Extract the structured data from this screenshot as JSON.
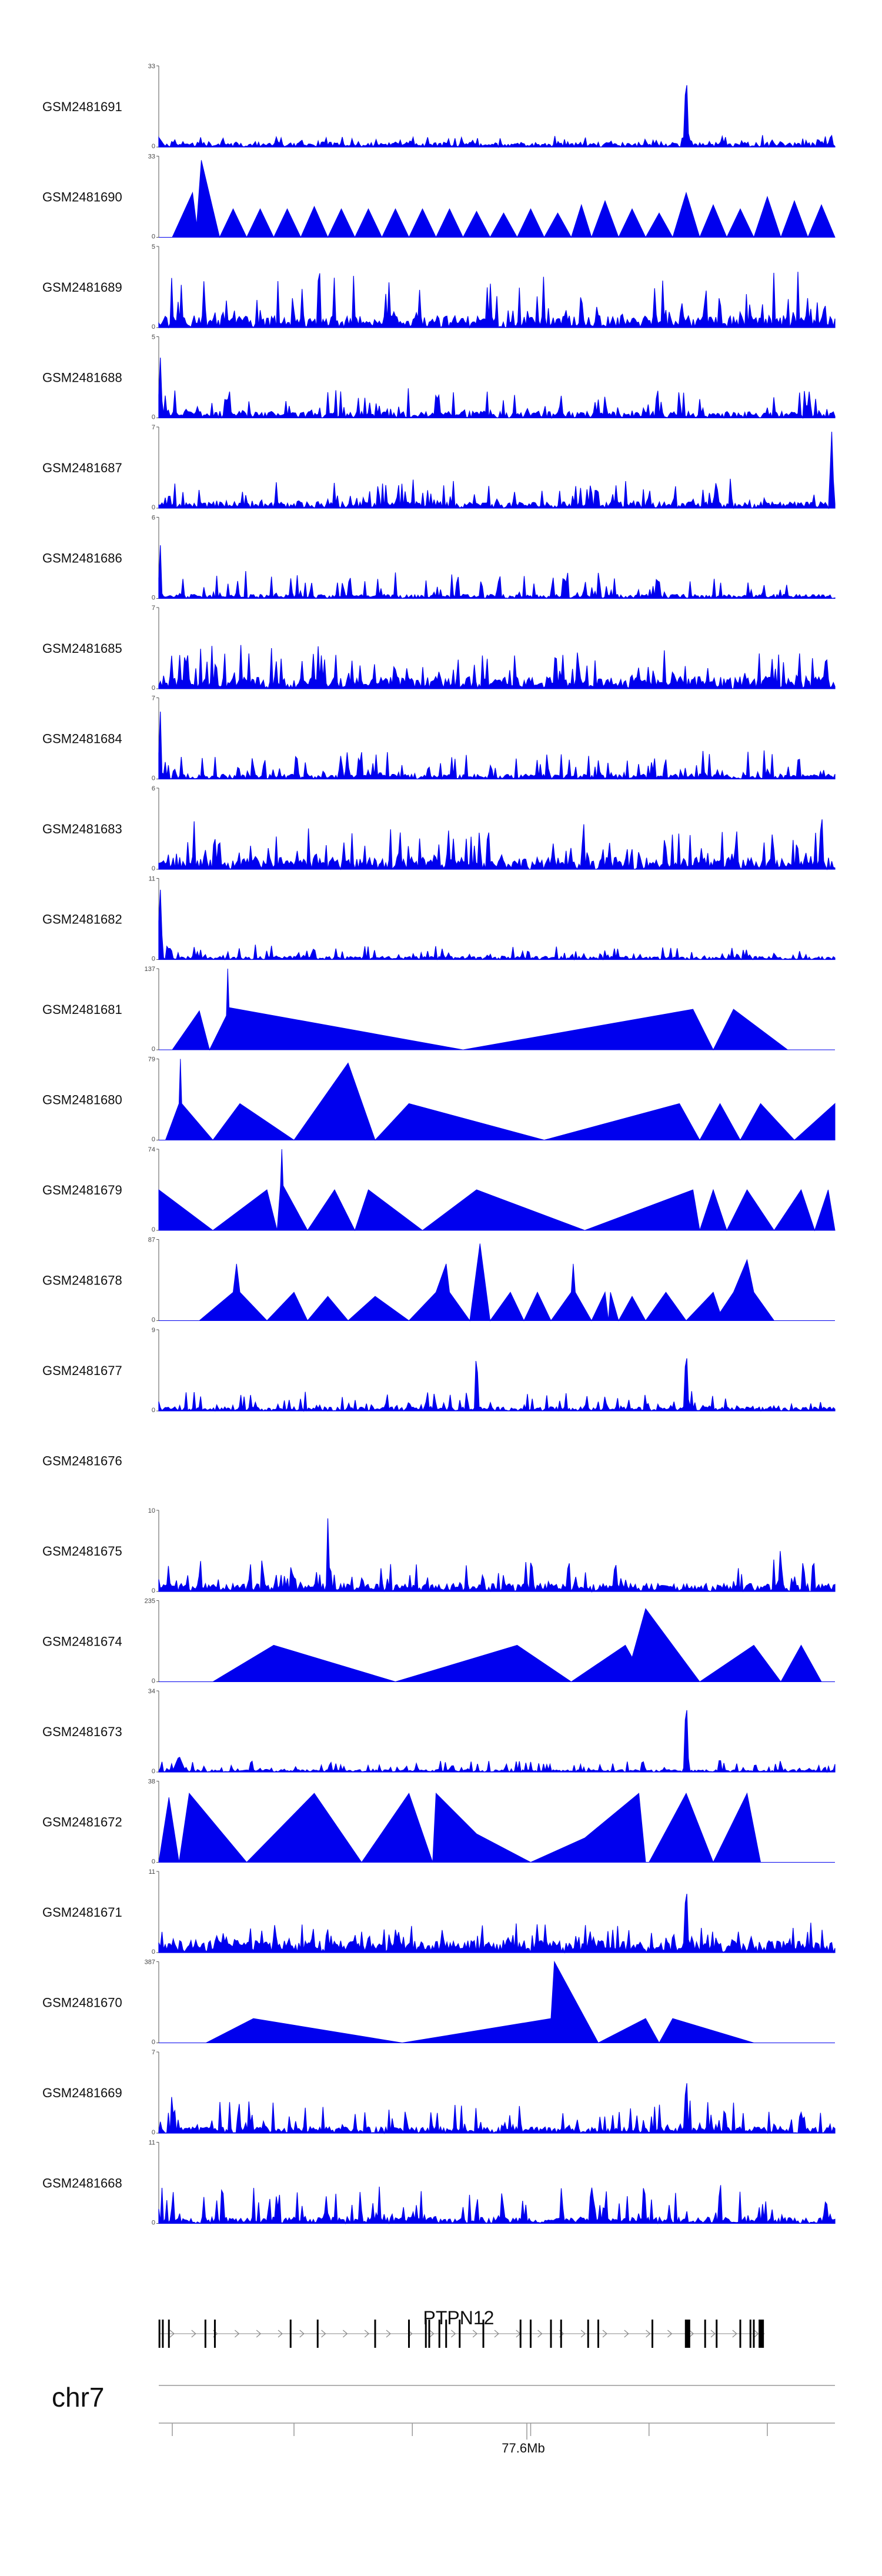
{
  "chart_data": {
    "type": "area",
    "title": "",
    "region": {
      "chromosome": "chr7",
      "gene": "PTPN12",
      "axis_tick_label": "77.6Mb",
      "x_domain": [
        0,
        100
      ]
    },
    "color": "#0000ee",
    "tracks": [
      {
        "name": "GSM2481691",
        "ymax": 33,
        "style": "noise",
        "seed": 11,
        "base": 0.06,
        "var": 0.1,
        "peaks": [
          [
            78,
            1.0,
            0.4
          ],
          [
            0,
            0.12,
            1
          ]
        ]
      },
      {
        "name": "GSM2481690",
        "ymax": 33,
        "style": "triangles",
        "points": [
          [
            2,
            0
          ],
          [
            5,
            0.55
          ],
          [
            5.6,
            0.15
          ],
          [
            6.3,
            0.95
          ],
          [
            9,
            0
          ],
          [
            11,
            0.35
          ],
          [
            13,
            0
          ],
          [
            15,
            0.35
          ],
          [
            17,
            0
          ],
          [
            19,
            0.35
          ],
          [
            21,
            0
          ],
          [
            23,
            0.38
          ],
          [
            25,
            0
          ],
          [
            27,
            0.35
          ],
          [
            29,
            0
          ],
          [
            31,
            0.35
          ],
          [
            33,
            0
          ],
          [
            35,
            0.35
          ],
          [
            37,
            0
          ],
          [
            39,
            0.35
          ],
          [
            41,
            0
          ],
          [
            43,
            0.35
          ],
          [
            45,
            0
          ],
          [
            47,
            0.32
          ],
          [
            49,
            0
          ],
          [
            51,
            0.3
          ],
          [
            53,
            0
          ],
          [
            55,
            0.35
          ],
          [
            57,
            0
          ],
          [
            59,
            0.3
          ],
          [
            61,
            0
          ],
          [
            62.5,
            0.4
          ],
          [
            64,
            0
          ],
          [
            66,
            0.45
          ],
          [
            68,
            0
          ],
          [
            70,
            0.35
          ],
          [
            72,
            0
          ],
          [
            74,
            0.3
          ],
          [
            76,
            0
          ],
          [
            78,
            0.55
          ],
          [
            80,
            0
          ],
          [
            82,
            0.4
          ],
          [
            84,
            0
          ],
          [
            86,
            0.35
          ],
          [
            88,
            0
          ],
          [
            90,
            0.5
          ],
          [
            92,
            0
          ],
          [
            94,
            0.45
          ],
          [
            96,
            0
          ],
          [
            98,
            0.4
          ],
          [
            100,
            0
          ]
        ]
      },
      {
        "name": "GSM2481689",
        "ymax": 5,
        "style": "noise",
        "seed": 23,
        "base": 0.15,
        "var": 0.55,
        "peaks": []
      },
      {
        "name": "GSM2481688",
        "ymax": 5,
        "style": "noise",
        "seed": 37,
        "base": 0.08,
        "var": 0.3,
        "peaks": [
          [
            0.2,
            0.85,
            0.3
          ]
        ]
      },
      {
        "name": "GSM2481687",
        "ymax": 7,
        "style": "noise",
        "seed": 41,
        "base": 0.08,
        "var": 0.3,
        "peaks": [
          [
            99.5,
            1.0,
            0.4
          ]
        ]
      },
      {
        "name": "GSM2481686",
        "ymax": 6,
        "style": "noise",
        "seed": 53,
        "base": 0.05,
        "var": 0.3,
        "peaks": [
          [
            0.2,
            0.75,
            0.3
          ]
        ]
      },
      {
        "name": "GSM2481685",
        "ymax": 7,
        "style": "noise",
        "seed": 67,
        "base": 0.15,
        "var": 0.45,
        "peaks": [
          [
            62,
            0.85,
            0.2
          ]
        ]
      },
      {
        "name": "GSM2481684",
        "ymax": 7,
        "style": "noise",
        "seed": 79,
        "base": 0.06,
        "var": 0.3,
        "peaks": [
          [
            0.2,
            0.95,
            0.3
          ]
        ]
      },
      {
        "name": "GSM2481683",
        "ymax": 6,
        "style": "noise",
        "seed": 83,
        "base": 0.15,
        "var": 0.45,
        "peaks": [
          [
            98,
            0.9,
            0.3
          ]
        ]
      },
      {
        "name": "GSM2481682",
        "ymax": 11,
        "style": "noise",
        "seed": 97,
        "base": 0.04,
        "var": 0.15,
        "peaks": [
          [
            0.2,
            0.95,
            0.4
          ]
        ]
      },
      {
        "name": "GSM2481681",
        "ymax": 137,
        "style": "triangles",
        "points": [
          [
            2,
            0
          ],
          [
            6,
            0.48
          ],
          [
            7.5,
            0
          ],
          [
            10,
            0.42
          ],
          [
            10.2,
            1.0
          ],
          [
            10.4,
            0.52
          ],
          [
            45,
            0
          ],
          [
            79,
            0.5
          ],
          [
            82,
            0
          ],
          [
            85,
            0.5
          ],
          [
            93,
            0
          ]
        ]
      },
      {
        "name": "GSM2481680",
        "ymax": 79,
        "style": "triangles",
        "points": [
          [
            1,
            0
          ],
          [
            3,
            0.45
          ],
          [
            3.2,
            1.0
          ],
          [
            3.4,
            0.45
          ],
          [
            8,
            0
          ],
          [
            12,
            0.45
          ],
          [
            20,
            0
          ],
          [
            28,
            0.95
          ],
          [
            32,
            0
          ],
          [
            37,
            0.45
          ],
          [
            57,
            0
          ],
          [
            77,
            0.45
          ],
          [
            80,
            0
          ],
          [
            83,
            0.45
          ],
          [
            86,
            0
          ],
          [
            89,
            0.45
          ],
          [
            94,
            0
          ],
          [
            100,
            0.45
          ],
          [
            100,
            0
          ]
        ]
      },
      {
        "name": "GSM2481679",
        "ymax": 74,
        "style": "triangles",
        "points": [
          [
            0,
            0.5
          ],
          [
            8,
            0
          ],
          [
            16,
            0.5
          ],
          [
            17.5,
            0
          ],
          [
            18,
            0.55
          ],
          [
            18.2,
            1.0
          ],
          [
            18.4,
            0.55
          ],
          [
            22,
            0
          ],
          [
            26,
            0.5
          ],
          [
            29,
            0
          ],
          [
            31,
            0.5
          ],
          [
            39,
            0
          ],
          [
            47,
            0.5
          ],
          [
            63,
            0
          ],
          [
            79,
            0.5
          ],
          [
            80,
            0
          ],
          [
            82,
            0.5
          ],
          [
            84,
            0
          ],
          [
            87,
            0.5
          ],
          [
            91,
            0
          ],
          [
            95,
            0.5
          ],
          [
            97,
            0
          ],
          [
            99,
            0.5
          ],
          [
            100,
            0
          ]
        ]
      },
      {
        "name": "GSM2481678",
        "ymax": 87,
        "style": "triangles",
        "points": [
          [
            6,
            0
          ],
          [
            11,
            0.35
          ],
          [
            11.5,
            0.7
          ],
          [
            12,
            0.35
          ],
          [
            16,
            0
          ],
          [
            20,
            0.35
          ],
          [
            22,
            0
          ],
          [
            25,
            0.3
          ],
          [
            28,
            0
          ],
          [
            32,
            0.3
          ],
          [
            37,
            0
          ],
          [
            41,
            0.35
          ],
          [
            42.5,
            0.7
          ],
          [
            43,
            0.35
          ],
          [
            46,
            0
          ],
          [
            47.5,
            0.95
          ],
          [
            49,
            0
          ],
          [
            52,
            0.35
          ],
          [
            54,
            0
          ],
          [
            56,
            0.35
          ],
          [
            58,
            0
          ],
          [
            61,
            0.35
          ],
          [
            61.3,
            0.7
          ],
          [
            61.6,
            0.35
          ],
          [
            64,
            0
          ],
          [
            66,
            0.35
          ],
          [
            66.5,
            0
          ],
          [
            66.8,
            0.35
          ],
          [
            68,
            0
          ],
          [
            70,
            0.3
          ],
          [
            72,
            0
          ],
          [
            75,
            0.35
          ],
          [
            78,
            0
          ],
          [
            82,
            0.35
          ],
          [
            83,
            0.1
          ],
          [
            85,
            0.35
          ],
          [
            87,
            0.75
          ],
          [
            88,
            0.35
          ],
          [
            91,
            0
          ],
          [
            96,
            0
          ]
        ]
      },
      {
        "name": "GSM2481677",
        "ymax": 9,
        "style": "noise",
        "seed": 101,
        "base": 0.05,
        "var": 0.2,
        "peaks": [
          [
            47,
            0.9,
            0.3
          ],
          [
            78,
            0.85,
            0.4
          ]
        ]
      },
      {
        "name": "GSM2481676",
        "ymax": 0,
        "style": "empty"
      },
      {
        "name": "GSM2481675",
        "ymax": 10,
        "style": "noise",
        "seed": 113,
        "base": 0.1,
        "var": 0.35,
        "peaks": [
          [
            25,
            0.9,
            0.2
          ],
          [
            92,
            0.95,
            0.2
          ]
        ]
      },
      {
        "name": "GSM2481674",
        "ymax": 235,
        "style": "triangles",
        "points": [
          [
            8,
            0
          ],
          [
            17,
            0.45
          ],
          [
            35,
            0
          ],
          [
            53,
            0.45
          ],
          [
            61,
            0
          ],
          [
            69,
            0.45
          ],
          [
            70,
            0.3
          ],
          [
            72,
            0.9
          ],
          [
            80,
            0
          ],
          [
            88,
            0.45
          ],
          [
            92,
            0
          ],
          [
            95,
            0.45
          ],
          [
            98,
            0
          ]
        ]
      },
      {
        "name": "GSM2481673",
        "ymax": 34,
        "style": "noise",
        "seed": 127,
        "base": 0.03,
        "var": 0.12,
        "peaks": [
          [
            78,
            1.0,
            0.4
          ],
          [
            3,
            0.2,
            1
          ]
        ]
      },
      {
        "name": "GSM2481672",
        "ymax": 38,
        "style": "triangles",
        "points": [
          [
            0,
            0
          ],
          [
            1.5,
            0.8
          ],
          [
            3,
            0.0
          ],
          [
            4.5,
            0.85
          ],
          [
            13,
            0
          ],
          [
            23,
            0.85
          ],
          [
            30,
            0
          ],
          [
            37,
            0.85
          ],
          [
            40.5,
            0
          ],
          [
            41,
            0.85
          ],
          [
            47,
            0.35
          ],
          [
            55,
            0
          ],
          [
            63,
            0.3
          ],
          [
            71,
            0.85
          ],
          [
            72,
            0
          ],
          [
            72.5,
            0
          ],
          [
            78,
            0.85
          ],
          [
            82,
            0
          ],
          [
            87,
            0.85
          ],
          [
            89,
            0
          ],
          [
            94,
            0
          ]
        ]
      },
      {
        "name": "GSM2481671",
        "ymax": 11,
        "style": "noise",
        "seed": 139,
        "base": 0.15,
        "var": 0.25,
        "peaks": [
          [
            78,
            0.95,
            0.4
          ]
        ]
      },
      {
        "name": "GSM2481670",
        "ymax": 387,
        "style": "triangles",
        "points": [
          [
            7,
            0
          ],
          [
            14,
            0.3
          ],
          [
            36,
            0
          ],
          [
            58,
            0.3
          ],
          [
            58.5,
            1.0
          ],
          [
            65,
            0
          ],
          [
            72,
            0.3
          ],
          [
            74,
            0
          ],
          [
            76,
            0.3
          ],
          [
            88,
            0
          ]
        ]
      },
      {
        "name": "GSM2481669",
        "ymax": 7,
        "style": "noise",
        "seed": 151,
        "base": 0.08,
        "var": 0.35,
        "peaks": [
          [
            2,
            0.85,
            0.2
          ],
          [
            78,
            0.9,
            0.3
          ]
        ]
      },
      {
        "name": "GSM2481668",
        "ymax": 11,
        "style": "noise",
        "seed": 163,
        "base": 0.08,
        "var": 0.4,
        "peaks": [
          [
            83,
            0.9,
            0.2
          ]
        ]
      }
    ],
    "exons": [
      0.1,
      0.6,
      1.5,
      6.9,
      8.3,
      19.5,
      23.5,
      32,
      37,
      39.5,
      40,
      41.5,
      42.5,
      44.5,
      48,
      53.5,
      55,
      58,
      59.5,
      63.5,
      65,
      73,
      78.2,
      80.8,
      82.5,
      86,
      87.5,
      88,
      89.1
    ],
    "thick_exons": [
      78.2,
      89.1
    ],
    "axis_ticks": [
      2,
      20,
      37.5,
      55,
      72.5,
      90
    ]
  }
}
